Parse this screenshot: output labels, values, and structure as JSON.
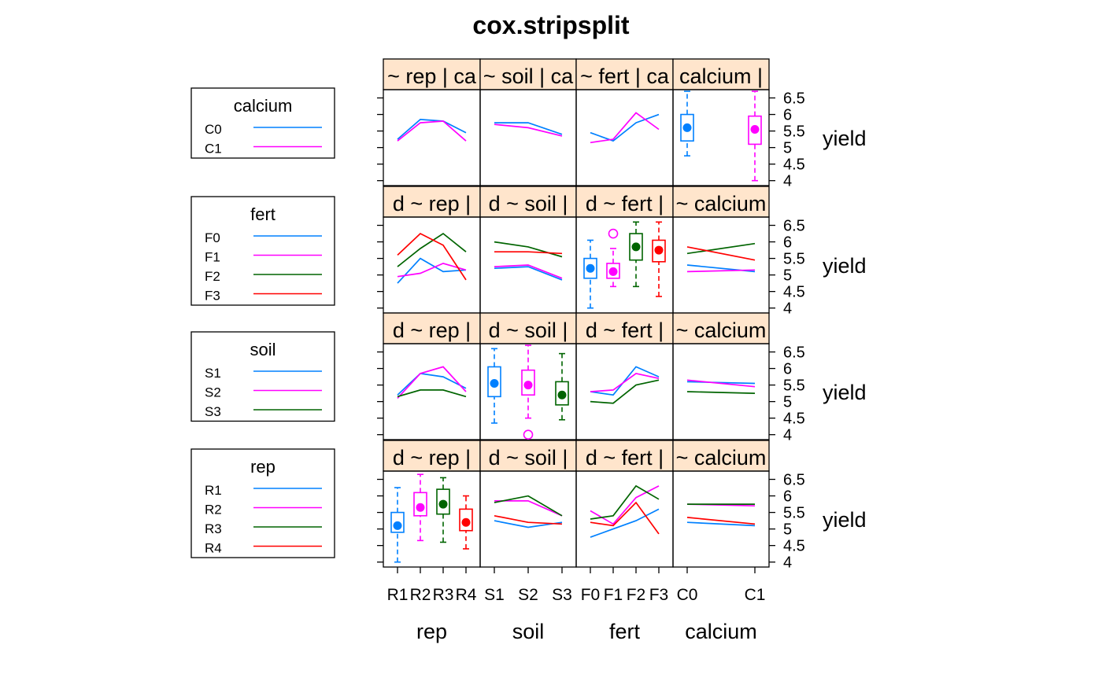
{
  "title": "cox.stripsplit",
  "colors": {
    "blue": "#0080ff",
    "magenta": "#ff00ff",
    "green": "#006400",
    "red": "#ff0000",
    "strip": "#ffe5cc",
    "frame": "#000000"
  },
  "legends": [
    {
      "title": "calcium",
      "entries": [
        "C0",
        "C1"
      ],
      "colors": [
        "blue",
        "magenta"
      ]
    },
    {
      "title": "fert",
      "entries": [
        "F0",
        "F1",
        "F2",
        "F3"
      ],
      "colors": [
        "blue",
        "magenta",
        "green",
        "red"
      ]
    },
    {
      "title": "soil",
      "entries": [
        "S1",
        "S2",
        "S3"
      ],
      "colors": [
        "blue",
        "magenta",
        "green"
      ]
    },
    {
      "title": "rep",
      "entries": [
        "R1",
        "R2",
        "R3",
        "R4"
      ],
      "colors": [
        "blue",
        "magenta",
        "green",
        "red"
      ]
    }
  ],
  "columns": [
    {
      "name": "rep",
      "levels": [
        "R1",
        "R2",
        "R3",
        "R4"
      ],
      "tick_labels": [
        "R1",
        "R2",
        "R3",
        "R4"
      ],
      "xlabel": "rep"
    },
    {
      "name": "soil",
      "levels": [
        "S1",
        "S2",
        "S3"
      ],
      "tick_labels": [
        "S1",
        "S2",
        "S3"
      ],
      "xlabel": "soil"
    },
    {
      "name": "fert",
      "levels": [
        "F0",
        "F1",
        "F2",
        "F3"
      ],
      "tick_labels": [
        "F0",
        "F1",
        "F2",
        "F3"
      ],
      "xlabel": "fert"
    },
    {
      "name": "calcium",
      "levels": [
        "C0",
        "C1"
      ],
      "tick_labels": [
        "C0",
        "C1"
      ],
      "xlabel": "calcium"
    }
  ],
  "strip_labels": [
    [
      "~ rep | ca",
      "~ soil | ca",
      "~ fert | ca",
      "calcium |"
    ],
    [
      "d ~ rep |",
      "d ~ soil |",
      "d ~ fert |",
      "~ calcium"
    ],
    [
      "d ~ rep |",
      "d ~ soil |",
      "d ~ fert |",
      "~ calcium"
    ],
    [
      "d ~ rep |",
      "d ~ soil |",
      "d ~ fert |",
      "~ calcium"
    ]
  ],
  "y_axis": {
    "label": "yield",
    "range": [
      3.85,
      6.75
    ],
    "ticks": [
      4,
      4.5,
      5,
      5.5,
      6,
      6.5
    ],
    "tick_labels": [
      "4",
      "4.5",
      "5",
      "5.5",
      "6",
      "6.5"
    ]
  },
  "chart_data": {
    "type": "line",
    "title": "cox.stripsplit",
    "ylabel": "yield",
    "ylim": [
      3.85,
      6.75
    ],
    "grid": false,
    "legend_position": "left",
    "panels": [
      {
        "row": "calcium",
        "col": "rep",
        "kind": "lines",
        "series": [
          {
            "name": "C0",
            "color": "blue",
            "values": [
              5.25,
              5.85,
              5.8,
              5.45
            ]
          },
          {
            "name": "C1",
            "color": "magenta",
            "values": [
              5.2,
              5.75,
              5.8,
              5.2
            ]
          }
        ]
      },
      {
        "row": "calcium",
        "col": "soil",
        "kind": "lines",
        "series": [
          {
            "name": "C0",
            "color": "blue",
            "values": [
              5.75,
              5.75,
              5.4
            ]
          },
          {
            "name": "C1",
            "color": "magenta",
            "values": [
              5.7,
              5.6,
              5.35
            ]
          }
        ]
      },
      {
        "row": "calcium",
        "col": "fert",
        "kind": "lines",
        "series": [
          {
            "name": "C0",
            "color": "blue",
            "values": [
              5.45,
              5.2,
              5.75,
              6.0
            ]
          },
          {
            "name": "C1",
            "color": "magenta",
            "values": [
              5.15,
              5.25,
              6.05,
              5.55
            ]
          }
        ]
      },
      {
        "row": "calcium",
        "col": "calcium",
        "kind": "box",
        "boxes": [
          {
            "level": "C0",
            "color": "blue",
            "min": 4.75,
            "q1": 5.2,
            "median": 5.6,
            "q3": 6.0,
            "max": 6.7,
            "outliers": []
          },
          {
            "level": "C1",
            "color": "magenta",
            "min": 4.0,
            "q1": 5.1,
            "median": 5.55,
            "q3": 5.95,
            "max": 6.7,
            "outliers": []
          }
        ]
      },
      {
        "row": "fert",
        "col": "rep",
        "kind": "lines",
        "series": [
          {
            "name": "F0",
            "color": "blue",
            "values": [
              4.75,
              5.5,
              5.1,
              5.15
            ]
          },
          {
            "name": "F1",
            "color": "magenta",
            "values": [
              4.95,
              5.05,
              5.35,
              5.15
            ]
          },
          {
            "name": "F2",
            "color": "green",
            "values": [
              5.25,
              5.8,
              6.25,
              5.7
            ]
          },
          {
            "name": "F3",
            "color": "red",
            "values": [
              5.6,
              6.25,
              5.9,
              4.85
            ]
          }
        ]
      },
      {
        "row": "fert",
        "col": "soil",
        "kind": "lines",
        "series": [
          {
            "name": "F0",
            "color": "blue",
            "values": [
              5.2,
              5.25,
              4.85
            ]
          },
          {
            "name": "F1",
            "color": "magenta",
            "values": [
              5.25,
              5.3,
              4.9
            ]
          },
          {
            "name": "F2",
            "color": "green",
            "values": [
              6.0,
              5.85,
              5.55
            ]
          },
          {
            "name": "F3",
            "color": "red",
            "values": [
              5.7,
              5.7,
              5.65
            ]
          }
        ]
      },
      {
        "row": "fert",
        "col": "fert",
        "kind": "box",
        "boxes": [
          {
            "level": "F0",
            "color": "blue",
            "min": 4.0,
            "q1": 4.9,
            "median": 5.2,
            "q3": 5.5,
            "max": 6.05,
            "outliers": []
          },
          {
            "level": "F1",
            "color": "magenta",
            "min": 4.65,
            "q1": 4.9,
            "median": 5.1,
            "q3": 5.35,
            "max": 5.8,
            "outliers": [
              6.25
            ]
          },
          {
            "level": "F2",
            "color": "green",
            "min": 4.65,
            "q1": 5.45,
            "median": 5.85,
            "q3": 6.25,
            "max": 6.6,
            "outliers": []
          },
          {
            "level": "F3",
            "color": "red",
            "min": 4.35,
            "q1": 5.4,
            "median": 5.75,
            "q3": 6.05,
            "max": 6.6,
            "outliers": []
          }
        ]
      },
      {
        "row": "fert",
        "col": "calcium",
        "kind": "lines",
        "series": [
          {
            "name": "F0",
            "color": "blue",
            "values": [
              5.3,
              5.1
            ]
          },
          {
            "name": "F1",
            "color": "magenta",
            "values": [
              5.1,
              5.15
            ]
          },
          {
            "name": "F2",
            "color": "green",
            "values": [
              5.65,
              5.95
            ]
          },
          {
            "name": "F3",
            "color": "red",
            "values": [
              5.85,
              5.45
            ]
          }
        ]
      },
      {
        "row": "soil",
        "col": "rep",
        "kind": "lines",
        "series": [
          {
            "name": "S1",
            "color": "blue",
            "values": [
              5.2,
              5.85,
              5.75,
              5.4
            ]
          },
          {
            "name": "S2",
            "color": "magenta",
            "values": [
              5.1,
              5.85,
              6.05,
              5.3
            ]
          },
          {
            "name": "S3",
            "color": "green",
            "values": [
              5.15,
              5.35,
              5.35,
              5.15
            ]
          }
        ]
      },
      {
        "row": "soil",
        "col": "soil",
        "kind": "box",
        "boxes": [
          {
            "level": "S1",
            "color": "blue",
            "min": 4.35,
            "q1": 5.15,
            "median": 5.55,
            "q3": 6.05,
            "max": 6.6,
            "outliers": []
          },
          {
            "level": "S2",
            "color": "magenta",
            "min": 4.5,
            "q1": 5.2,
            "median": 5.5,
            "q3": 5.95,
            "max": 6.7,
            "outliers": [
              4.0
            ]
          },
          {
            "level": "S3",
            "color": "green",
            "min": 4.45,
            "q1": 4.9,
            "median": 5.2,
            "q3": 5.6,
            "max": 6.45,
            "outliers": []
          }
        ]
      },
      {
        "row": "soil",
        "col": "fert",
        "kind": "lines",
        "series": [
          {
            "name": "S1",
            "color": "blue",
            "values": [
              5.3,
              5.2,
              6.05,
              5.75
            ]
          },
          {
            "name": "S2",
            "color": "magenta",
            "values": [
              5.3,
              5.35,
              5.85,
              5.7
            ]
          },
          {
            "name": "S3",
            "color": "green",
            "values": [
              5.0,
              4.95,
              5.5,
              5.65
            ]
          }
        ]
      },
      {
        "row": "soil",
        "col": "calcium",
        "kind": "lines",
        "series": [
          {
            "name": "S1",
            "color": "blue",
            "values": [
              5.6,
              5.55
            ]
          },
          {
            "name": "S2",
            "color": "magenta",
            "values": [
              5.65,
              5.45
            ]
          },
          {
            "name": "S3",
            "color": "green",
            "values": [
              5.3,
              5.25
            ]
          }
        ]
      },
      {
        "row": "rep",
        "col": "rep",
        "kind": "box",
        "boxes": [
          {
            "level": "R1",
            "color": "blue",
            "min": 4.0,
            "q1": 4.9,
            "median": 5.1,
            "q3": 5.5,
            "max": 6.25,
            "outliers": []
          },
          {
            "level": "R2",
            "color": "magenta",
            "min": 4.65,
            "q1": 5.4,
            "median": 5.65,
            "q3": 6.1,
            "max": 6.65,
            "outliers": []
          },
          {
            "level": "R3",
            "color": "green",
            "min": 4.6,
            "q1": 5.45,
            "median": 5.75,
            "q3": 6.2,
            "max": 6.55,
            "outliers": []
          },
          {
            "level": "R4",
            "color": "red",
            "min": 4.4,
            "q1": 4.95,
            "median": 5.2,
            "q3": 5.6,
            "max": 6.0,
            "outliers": []
          }
        ]
      },
      {
        "row": "rep",
        "col": "soil",
        "kind": "lines",
        "series": [
          {
            "name": "R1",
            "color": "blue",
            "values": [
              5.25,
              5.05,
              5.2
            ]
          },
          {
            "name": "R2",
            "color": "magenta",
            "values": [
              5.85,
              5.85,
              5.4
            ]
          },
          {
            "name": "R3",
            "color": "green",
            "values": [
              5.8,
              6.0,
              5.4
            ]
          },
          {
            "name": "R4",
            "color": "red",
            "values": [
              5.4,
              5.2,
              5.15
            ]
          }
        ]
      },
      {
        "row": "rep",
        "col": "fert",
        "kind": "lines",
        "series": [
          {
            "name": "R1",
            "color": "blue",
            "values": [
              4.75,
              5.0,
              5.25,
              5.6
            ]
          },
          {
            "name": "R2",
            "color": "magenta",
            "values": [
              5.55,
              5.15,
              5.95,
              6.3
            ]
          },
          {
            "name": "R3",
            "color": "green",
            "values": [
              5.3,
              5.4,
              6.3,
              5.9
            ]
          },
          {
            "name": "R4",
            "color": "red",
            "values": [
              5.2,
              5.1,
              5.8,
              4.85
            ]
          }
        ]
      },
      {
        "row": "rep",
        "col": "calcium",
        "kind": "lines",
        "series": [
          {
            "name": "R1",
            "color": "blue",
            "values": [
              5.2,
              5.1
            ]
          },
          {
            "name": "R2",
            "color": "magenta",
            "values": [
              5.75,
              5.7
            ]
          },
          {
            "name": "R3",
            "color": "green",
            "values": [
              5.75,
              5.75
            ]
          },
          {
            "name": "R4",
            "color": "red",
            "values": [
              5.35,
              5.15
            ]
          }
        ]
      }
    ]
  }
}
